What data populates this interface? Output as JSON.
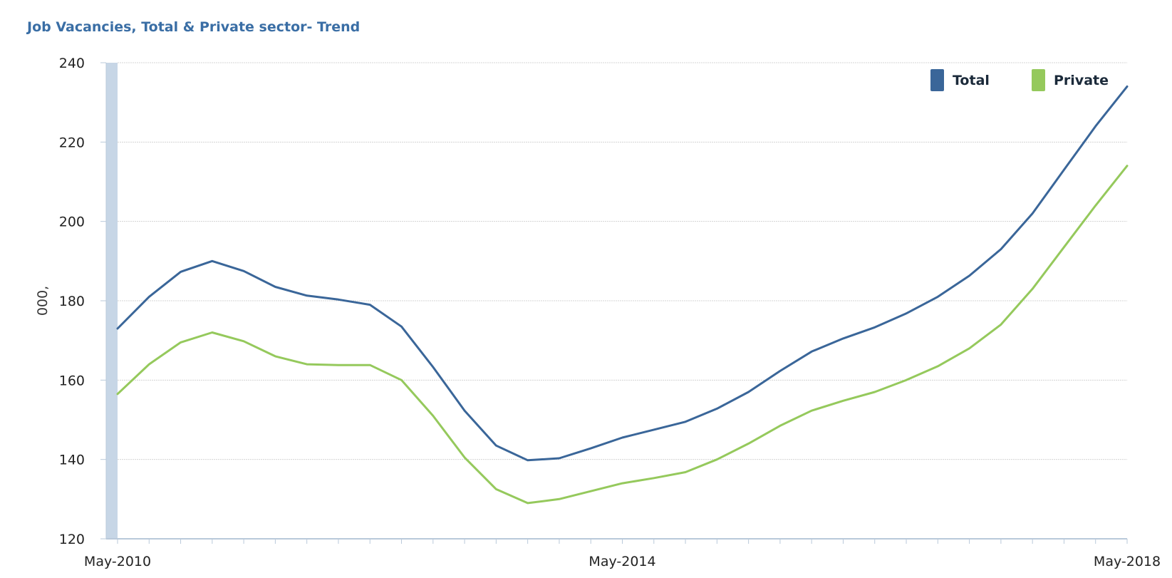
{
  "chart_data": {
    "type": "line",
    "title": "Job Vacancies, Total & Private sector- Trend",
    "ylabel": "000,",
    "xlabel": "",
    "ylim": [
      120,
      240
    ],
    "yticks": [
      120,
      140,
      160,
      180,
      200,
      220,
      240
    ],
    "x": [
      "May-2010",
      "Aug-2010",
      "Nov-2010",
      "Feb-2011",
      "May-2011",
      "Aug-2011",
      "Nov-2011",
      "Feb-2012",
      "May-2012",
      "Aug-2012",
      "Nov-2012",
      "Feb-2013",
      "May-2013",
      "Aug-2013",
      "Nov-2013",
      "Feb-2014",
      "May-2014",
      "Aug-2014",
      "Nov-2014",
      "Feb-2015",
      "May-2015",
      "Aug-2015",
      "Nov-2015",
      "Feb-2016",
      "May-2016",
      "Aug-2016",
      "Nov-2016",
      "Feb-2017",
      "May-2017",
      "Aug-2017",
      "Nov-2017",
      "Feb-2018",
      "May-2018"
    ],
    "xtick_labels": [
      "May-2010",
      "May-2014",
      "May-2018"
    ],
    "series": [
      {
        "name": "Total",
        "color": "#3a6699",
        "values": [
          173,
          181,
          187.3,
          190,
          187.5,
          183.5,
          181.3,
          180.3,
          179,
          173.5,
          163.3,
          152.3,
          143.5,
          139.8,
          140.3,
          142.8,
          145.5,
          147.5,
          149.5,
          152.8,
          157,
          162.3,
          167.2,
          170.5,
          173.3,
          176.8,
          181,
          186.3,
          193,
          202,
          213,
          224,
          234
        ]
      },
      {
        "name": "Private",
        "color": "#95c95c",
        "values": [
          156.5,
          164,
          169.5,
          172,
          169.8,
          166,
          164,
          163.8,
          163.8,
          160,
          151,
          140.5,
          132.5,
          129,
          130,
          132,
          134,
          135.3,
          136.8,
          140,
          144,
          148.5,
          152.3,
          154.8,
          157,
          160,
          163.5,
          168,
          174,
          183,
          193.5,
          204,
          214
        ]
      }
    ],
    "grid": true,
    "legend_position": "top-right"
  }
}
